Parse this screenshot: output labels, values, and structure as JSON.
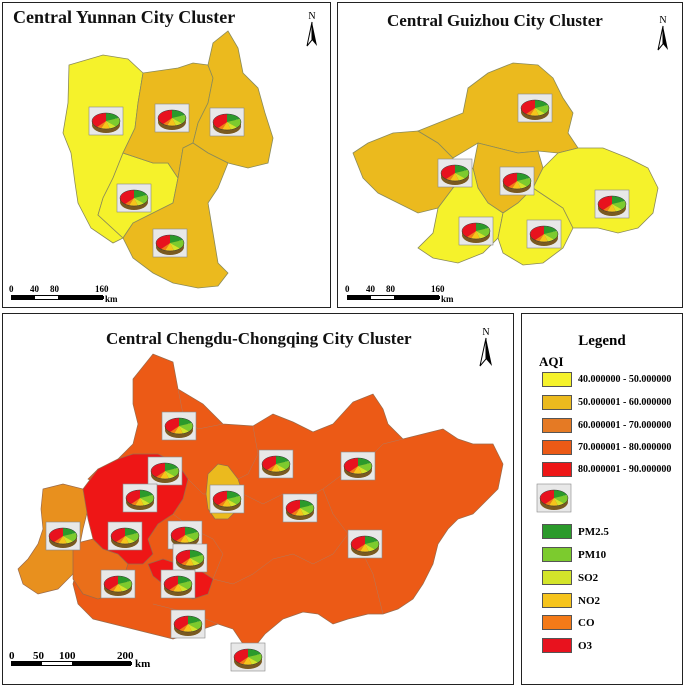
{
  "colors": {
    "aqi_40_50": "#f5f22b",
    "aqi_50_60": "#ebba1e",
    "aqi_60_70": "#e57a24",
    "aqi_70_80": "#ec5a16",
    "aqi_80_90": "#ee1616",
    "pm25": "#2b9a2b",
    "pm10": "#7ccb2e",
    "so2": "#d3e42a",
    "no2": "#f6c41c",
    "co": "#f47a18",
    "o3": "#e8121e"
  },
  "maps": {
    "yunnan": {
      "title": "Central Yunnan City Cluster",
      "north_label": "N",
      "scale": {
        "ticks": [
          "0",
          "40",
          "80",
          "160"
        ],
        "unit": "km"
      }
    },
    "guizhou": {
      "title": "Central Guizhou City Cluster",
      "north_label": "N",
      "scale": {
        "ticks": [
          "0",
          "40",
          "80",
          "160"
        ],
        "unit": "km"
      }
    },
    "chengyu": {
      "title": "Central Chengdu-Chongqing City Cluster",
      "north_label": "N",
      "scale": {
        "ticks": [
          "0",
          "50",
          "100",
          "200"
        ],
        "unit": "km"
      }
    }
  },
  "legend": {
    "title": "Legend",
    "aqi_heading": "AQI",
    "aqi_classes": [
      {
        "label": "40.000000 - 50.000000",
        "color": "#f5f22b"
      },
      {
        "label": "50.000001 - 60.000000",
        "color": "#ebba1e"
      },
      {
        "label": "60.000001 - 70.000000",
        "color": "#e57a24"
      },
      {
        "label": "70.000001 - 80.000000",
        "color": "#ec5a16"
      },
      {
        "label": "80.000001 - 90.000000",
        "color": "#ee1616"
      }
    ],
    "pollutants": [
      {
        "label": "PM2.5",
        "color": "#2b9a2b"
      },
      {
        "label": "PM10",
        "color": "#7ccb2e"
      },
      {
        "label": "SO2",
        "color": "#d3e42a"
      },
      {
        "label": "NO2",
        "color": "#f6c41c"
      },
      {
        "label": "CO",
        "color": "#f47a18"
      },
      {
        "label": "O3",
        "color": "#e8121e"
      }
    ]
  }
}
